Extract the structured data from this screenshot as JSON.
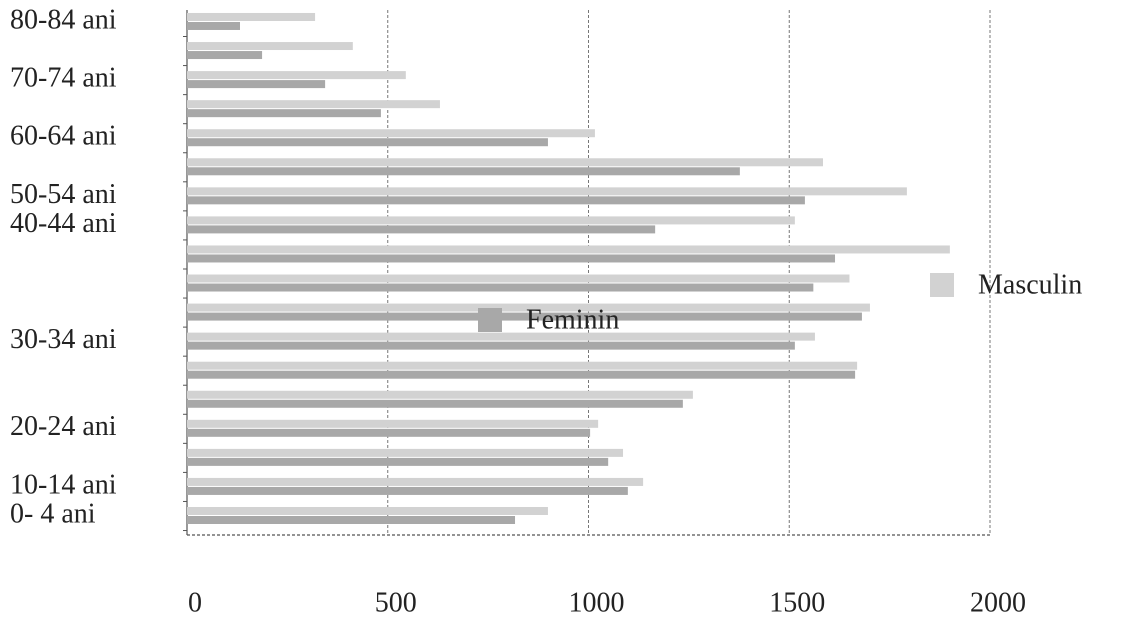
{
  "chart_data": {
    "type": "barh",
    "categories": [
      "0- 4 ani",
      "10-14 ani",
      null,
      "20-24 ani",
      null,
      null,
      "30-34 ani",
      null,
      null,
      null,
      "40-44 ani",
      "50-54 ani",
      null,
      "60-64 ani",
      null,
      "70-74 ani",
      null,
      "80-84 ani"
    ],
    "series": [
      {
        "name": "Masculin",
        "color": "#d2d2d2",
        "values": [
          899,
          1136,
          1086,
          1024,
          1260,
          1669,
          1564,
          1701,
          1650,
          1900,
          1514,
          1793,
          1584,
          1016,
          630,
          545,
          413,
          319
        ]
      },
      {
        "name": "Feminin",
        "color": "#a8a8a8",
        "values": [
          817,
          1098,
          1049,
          1004,
          1235,
          1664,
          1514,
          1681,
          1560,
          1614,
          1166,
          1539,
          1377,
          899,
          483,
          344,
          187,
          132
        ]
      }
    ],
    "xlim": [
      0,
      2000
    ],
    "xticks": [
      0,
      500,
      1000,
      1500,
      2000
    ],
    "grid": true
  }
}
